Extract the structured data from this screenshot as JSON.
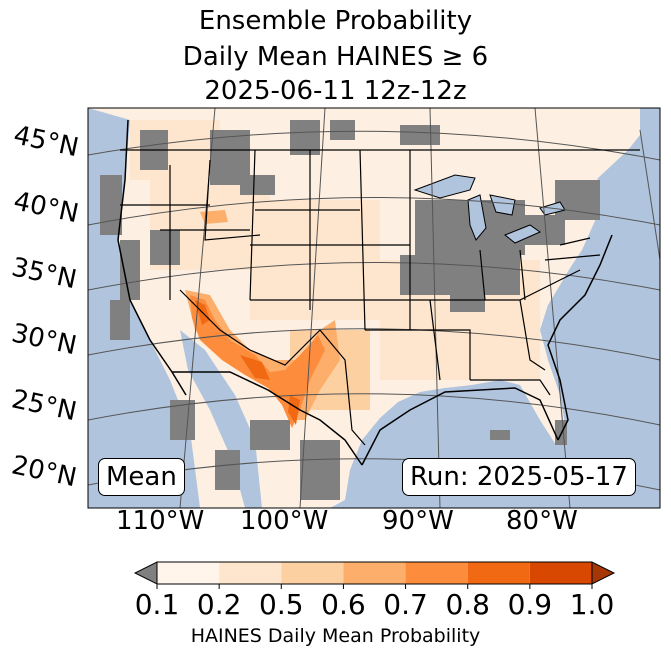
{
  "title": {
    "line1": "Ensemble Probability",
    "line2": "Daily Mean HAINES ≥ 6",
    "line3": "2025-06-11 12z-12z"
  },
  "map": {
    "latitude_labels": [
      "45°N",
      "40°N",
      "35°N",
      "30°N",
      "25°N",
      "20°N"
    ],
    "longitude_labels": [
      "110°W",
      "100°W",
      "90°W",
      "80°W"
    ],
    "mean_label": "Mean",
    "run_label": "Run: 2025-05-17",
    "colors": {
      "ocean": "#b0c4de",
      "missing_gray": "#808080",
      "state_border": "#000000"
    }
  },
  "colorbar": {
    "ticks": [
      "0.1",
      "0.2",
      "0.5",
      "0.6",
      "0.7",
      "0.8",
      "0.9",
      "1.0"
    ],
    "label": "HAINES Daily Mean Probability",
    "under_color": "#808080",
    "bin_colors": [
      "#fff5eb",
      "#fee6ce",
      "#fdd0a2",
      "#fdae6b",
      "#fd8d3c",
      "#f16913",
      "#d94801"
    ],
    "over_color": "#a63603"
  }
}
